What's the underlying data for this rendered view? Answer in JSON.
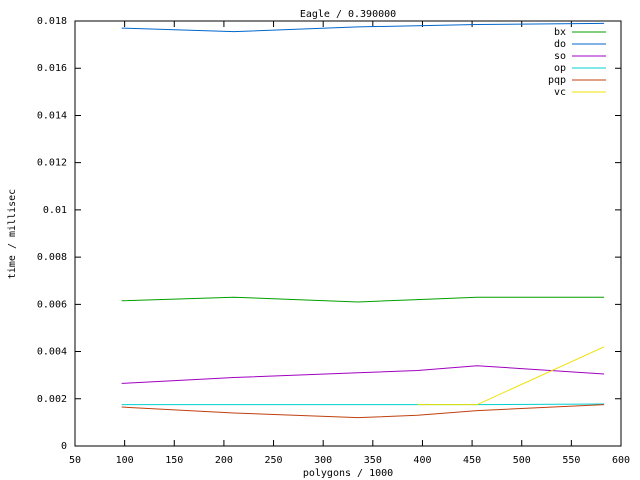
{
  "chart_data": {
    "type": "line",
    "title": "Eagle / 0.390000",
    "x_label": "polygons / 1000",
    "y_label": "time / millisec",
    "x": [
      97,
      210,
      335,
      395,
      455,
      583
    ],
    "series": [
      {
        "name": "bx",
        "color": "#00a000",
        "values": [
          0.00615,
          0.0063,
          0.0061,
          0.0062,
          0.0063,
          0.0063
        ]
      },
      {
        "name": "do",
        "color": "#0066cc",
        "values": [
          0.0177,
          0.01755,
          0.01775,
          0.0178,
          0.01785,
          0.0179
        ]
      },
      {
        "name": "so",
        "color": "#a000c0",
        "values": [
          0.00265,
          0.0029,
          0.0031,
          0.0032,
          0.0034,
          0.00305
        ]
      },
      {
        "name": "op",
        "color": "#00d0d0",
        "values": [
          0.00175,
          0.00175,
          0.00175,
          0.00175,
          0.00175,
          0.00178
        ]
      },
      {
        "name": "pqp",
        "color": "#c04010",
        "values": [
          0.00165,
          0.0014,
          0.0012,
          0.0013,
          0.0015,
          0.00175
        ]
      },
      {
        "name": "vc",
        "color": "#f0e000",
        "values": [
          null,
          null,
          null,
          0.00175,
          0.00175,
          0.0042
        ]
      }
    ],
    "xlim": [
      50,
      600
    ],
    "xticks": [
      50,
      100,
      150,
      200,
      250,
      300,
      350,
      400,
      450,
      500,
      550,
      600
    ],
    "ylim": [
      0,
      0.018
    ],
    "yticks": [
      0,
      0.002,
      0.004,
      0.006,
      0.008,
      0.01,
      0.012,
      0.014,
      0.016,
      0.018
    ],
    "grid": false,
    "legend": "top-right"
  }
}
